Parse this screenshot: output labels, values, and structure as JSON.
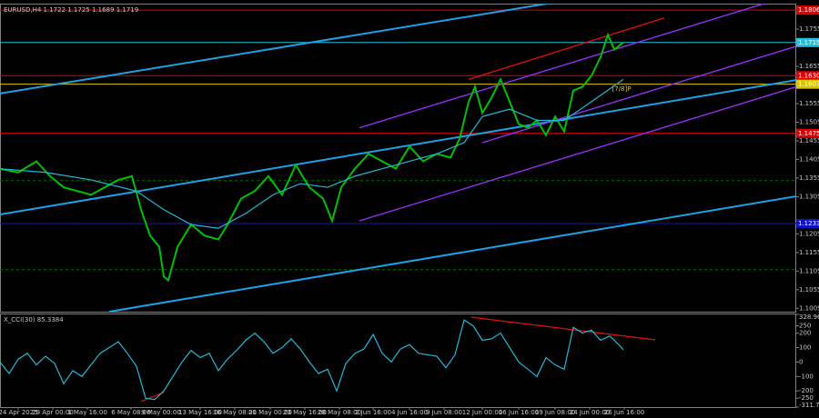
{
  "chart_data": [
    {
      "type": "line",
      "title": "EURUSD,H4  1.1722 1.1725 1.1689 1.1719",
      "xlim": [
        0,
        350
      ],
      "ylim": [
        1.0996,
        1.1821
      ],
      "xticks": [
        {
          "value": 8,
          "label": "24 Apr 2025"
        },
        {
          "value": 23.2,
          "label": "29 Apr 00:00"
        },
        {
          "value": 38.4,
          "label": "1 May 16:00"
        },
        {
          "value": 57.6,
          "label": "6 May 08:00"
        },
        {
          "value": 70.8,
          "label": "9 May 00:00"
        },
        {
          "value": 88,
          "label": "13 May 16:00"
        },
        {
          "value": 103.2,
          "label": "16 May 08:00"
        },
        {
          "value": 118.8,
          "label": "21 May 00:00"
        },
        {
          "value": 134,
          "label": "23 May 16:00"
        },
        {
          "value": 149.2,
          "label": "28 May 08:00"
        },
        {
          "value": 164,
          "label": "2 Jun 16:00"
        },
        {
          "value": 180,
          "label": "4 Jun 16:00"
        },
        {
          "value": 195.2,
          "label": "9 Jun 08:00"
        },
        {
          "value": 212,
          "label": "12 Jun 00:00"
        },
        {
          "value": 228,
          "label": "16 Jun 16:00"
        },
        {
          "value": 244,
          "label": "19 Jun 08:00"
        },
        {
          "value": 259.2,
          "label": "24 Jun 00:00"
        },
        {
          "value": 274.4,
          "label": "26 Jun 16:00"
        }
      ],
      "yticks": [
        1.1755,
        1.1655,
        1.1555,
        1.1505,
        1.1455,
        1.1405,
        1.1355,
        1.1305,
        1.1205,
        1.1155,
        1.1105,
        1.1055,
        1.1005
      ],
      "series": [
        {
          "color": "#00c000",
          "x": [
            0,
            8,
            16,
            22,
            28,
            34,
            40,
            46,
            52,
            58,
            62,
            66,
            70,
            72,
            74,
            78,
            84,
            90,
            96,
            100,
            106,
            112,
            118,
            124,
            130,
            136,
            142,
            146,
            150,
            156,
            162,
            168,
            174,
            180,
            186,
            192,
            198,
            202,
            206,
            208.8,
            212,
            216,
            220,
            224,
            228,
            232,
            236,
            240,
            244,
            248,
            252,
            256,
            260,
            264,
            267.2,
            270,
            274
          ],
          "values": [
            1.138,
            1.137,
            1.14,
            1.136,
            1.133,
            1.132,
            1.131,
            1.133,
            1.135,
            1.136,
            1.127,
            1.12,
            1.117,
            1.109,
            1.108,
            1.117,
            1.123,
            1.12,
            1.119,
            1.123,
            1.13,
            1.132,
            1.136,
            1.131,
            1.139,
            1.133,
            1.13,
            1.124,
            1.133,
            1.138,
            1.142,
            1.14,
            1.138,
            1.144,
            1.14,
            1.142,
            1.141,
            1.146,
            1.156,
            1.16,
            1.153,
            1.157,
            1.162,
            1.156,
            1.15,
            1.149,
            1.151,
            1.147,
            1.152,
            1.148,
            1.159,
            1.16,
            1.163,
            1.168,
            1.174,
            1.17,
            1.1719
          ]
        },
        {
          "color": "#20b8d8",
          "x": [
            0,
            20,
            40,
            60,
            72,
            84,
            96,
            108,
            120,
            132,
            144,
            156,
            168,
            180,
            192,
            204,
            212,
            224,
            236,
            248,
            260,
            274
          ],
          "values": [
            1.138,
            1.137,
            1.135,
            1.132,
            1.127,
            1.123,
            1.122,
            1.126,
            1.131,
            1.134,
            1.133,
            1.136,
            1.138,
            1.14,
            1.142,
            1.145,
            1.152,
            1.154,
            1.151,
            1.151,
            1.156,
            1.162
          ]
        }
      ],
      "lines": [
        {
          "color": "#1ea0e6",
          "x": [
            0,
            250
          ],
          "values": [
            1.1582,
            1.1833
          ]
        },
        {
          "color": "#1ea0e6",
          "x": [
            0,
            350
          ],
          "values": [
            1.1257,
            1.1618
          ]
        },
        {
          "color": "#1ea0e6",
          "x": [
            48,
            350
          ],
          "values": [
            1.0996,
            1.1306
          ]
        },
        {
          "color": "#9b30ff",
          "x": [
            158,
            350
          ],
          "values": [
            1.149,
            1.185
          ]
        },
        {
          "color": "#9b30ff",
          "x": [
            158,
            350
          ],
          "values": [
            1.124,
            1.16
          ]
        },
        {
          "color": "#9b30ff",
          "x": [
            212,
            350
          ],
          "values": [
            1.145,
            1.1709
          ]
        },
        {
          "color": "#e01010",
          "x": [
            206,
            292
          ],
          "values": [
            1.162,
            1.1785
          ]
        }
      ],
      "levels": [
        {
          "value": 1.1806,
          "label": "1.1806",
          "color": "#e00000",
          "style": "solid"
        },
        {
          "value": 1.1719,
          "label": "1.1719",
          "color": "#20c0e0",
          "style": "solid"
        },
        {
          "value": 1.163,
          "label": "1.1630",
          "color": "#e00000",
          "style": "solid"
        },
        {
          "value": 1.1607,
          "label": "1.1607",
          "color": "#d8c800",
          "style": "solid"
        },
        {
          "value": 1.1475,
          "label": "1.1475",
          "color": "#e00000",
          "style": "solid"
        },
        {
          "value": 1.1348,
          "color": "#007000",
          "style": "dashed"
        },
        {
          "value": 1.1233,
          "label": "1.1233",
          "color": "#1010c8",
          "style": "solid"
        },
        {
          "value": 1.1109,
          "color": "#007000",
          "style": "dashed"
        }
      ],
      "annotations": [
        {
          "text": "[7/8]P",
          "x": 269,
          "y": 1.1594,
          "color": "#d8c800"
        }
      ]
    },
    {
      "type": "line",
      "title": "X_CCI(30) 85.3384",
      "xlim": [
        0,
        350
      ],
      "ylim": [
        -311.7988,
        328.9647
      ],
      "yticks": [
        328.9647,
        250,
        200,
        100,
        0,
        -100,
        -200,
        -250,
        -311.7988
      ],
      "series": [
        {
          "color": "#20b8d8",
          "x": [
            0,
            4,
            8,
            12,
            16,
            20,
            24,
            28,
            32,
            36,
            40,
            44,
            48,
            52,
            56,
            60,
            64,
            68,
            72,
            76,
            80,
            84,
            88,
            92,
            96,
            100,
            104,
            108,
            112,
            116,
            120,
            124,
            128,
            132,
            136,
            140,
            144,
            148,
            152,
            156,
            160,
            164,
            168,
            172,
            176,
            180,
            184,
            188,
            192,
            196,
            200,
            204,
            208,
            212,
            216,
            220,
            224,
            228,
            232,
            236,
            240,
            244,
            248,
            252,
            256,
            260,
            264,
            268,
            272,
            274
          ],
          "values": [
            0,
            -80,
            20,
            60,
            -20,
            40,
            -10,
            -150,
            -60,
            -100,
            -20,
            60,
            100,
            140,
            60,
            -30,
            -250,
            -260,
            -200,
            -100,
            0,
            80,
            30,
            60,
            -60,
            20,
            80,
            150,
            200,
            140,
            60,
            100,
            160,
            90,
            0,
            -80,
            -50,
            -200,
            -10,
            60,
            90,
            190,
            60,
            0,
            90,
            120,
            60,
            50,
            40,
            -40,
            50,
            290,
            250,
            150,
            160,
            200,
            100,
            0,
            -50,
            -100,
            30,
            -20,
            -50,
            240,
            200,
            220,
            150,
            180,
            120,
            85.3384
          ]
        }
      ],
      "lines": [
        {
          "color": "#e01010",
          "x": [
            207,
            288
          ],
          "values": [
            310,
            153
          ]
        },
        {
          "color": "#e01010",
          "x": [
            62,
            72
          ],
          "values": [
            -273,
            -210
          ]
        }
      ]
    }
  ]
}
